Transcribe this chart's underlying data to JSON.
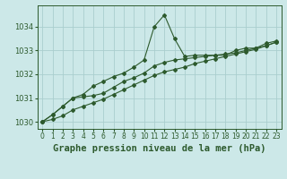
{
  "title": "Graphe pression niveau de la mer (hPa)",
  "bg_color": "#cce8e8",
  "line_color": "#2d5a2d",
  "grid_color": "#aacece",
  "hours": [
    0,
    1,
    2,
    3,
    4,
    5,
    6,
    7,
    8,
    9,
    10,
    11,
    12,
    13,
    14,
    15,
    16,
    17,
    18,
    19,
    20,
    21,
    22,
    23
  ],
  "series1": [
    1030.0,
    1030.3,
    1030.65,
    1031.0,
    1031.15,
    1031.5,
    1031.7,
    1031.9,
    1032.05,
    1032.3,
    1032.6,
    1034.0,
    1034.5,
    1033.5,
    1032.75,
    1032.8,
    1032.8,
    1032.8,
    1032.8,
    1033.0,
    1033.1,
    1033.1,
    1033.3,
    1033.4
  ],
  "series2": [
    1030.0,
    1030.3,
    1030.65,
    1031.0,
    1031.05,
    1031.1,
    1031.2,
    1031.45,
    1031.7,
    1031.85,
    1032.05,
    1032.35,
    1032.5,
    1032.6,
    1032.65,
    1032.7,
    1032.75,
    1032.8,
    1032.85,
    1032.9,
    1033.0,
    1033.1,
    1033.2,
    1033.35
  ],
  "series3": [
    1030.0,
    1030.1,
    1030.25,
    1030.5,
    1030.65,
    1030.8,
    1030.95,
    1031.15,
    1031.35,
    1031.55,
    1031.75,
    1031.95,
    1032.1,
    1032.2,
    1032.3,
    1032.45,
    1032.55,
    1032.65,
    1032.75,
    1032.85,
    1032.95,
    1033.05,
    1033.2,
    1033.35
  ],
  "ylim": [
    1029.7,
    1034.9
  ],
  "yticks": [
    1030,
    1031,
    1032,
    1033,
    1034
  ],
  "title_fontsize": 7.5,
  "tick_fontsize": 6.0
}
